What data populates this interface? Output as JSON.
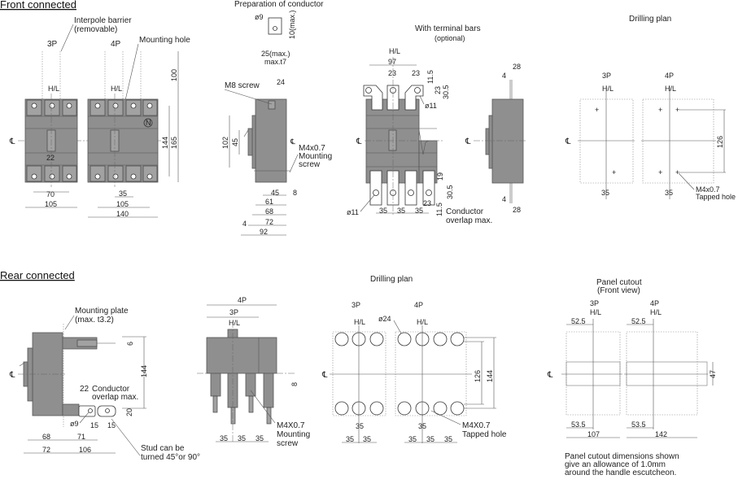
{
  "front": {
    "title": "Front connected",
    "interpole_1": "Interpole barrier",
    "interpole_2": "(removable)",
    "label_3p": "3P",
    "label_4p": "4P",
    "mounting_hole": "Mounting hole",
    "n_mark": "N",
    "dims": {
      "d22": "22",
      "d70": "70",
      "d105a": "105",
      "d35": "35",
      "d105b": "105",
      "d140": "140",
      "d144": "144",
      "d165": "165",
      "d100": "100"
    }
  },
  "conductor_prep": {
    "title": "Preparation of conductor",
    "dia": "ø9",
    "max10": "10(max.)",
    "max25": "25(max.)",
    "thick": "max.t7"
  },
  "side": {
    "m8": "M8 screw",
    "d24": "24",
    "d102": "102",
    "d45v": "45",
    "m4_1": "M4x0.7",
    "m4_2": "Mounting",
    "m4_3": "screw",
    "d45": "45",
    "d8": "8",
    "d61": "61",
    "d68": "68",
    "d72": "72",
    "d4": "4",
    "d92": "92"
  },
  "terminal_bars": {
    "title": "With terminal bars",
    "subtitle": "(optional)",
    "d97": "97",
    "d23a": "23",
    "d23b": "23",
    "d11_5a": "11.5",
    "d23c": "23",
    "d30_5a": "30.5",
    "dia_top": "ø11",
    "d19": "19",
    "d30_5b": "30.5",
    "d23d": "23",
    "d11_5b": "11.5",
    "d35a": "35",
    "d35b": "35",
    "d35c": "35",
    "dia_bot": "ø11",
    "overlap_1": "Conductor",
    "overlap_2": "overlap max.",
    "side_d28a": "28",
    "side_d4a": "4",
    "side_d4b": "4",
    "side_d28b": "28"
  },
  "drill_front": {
    "title": "Drilling plan",
    "label_3p": "3P",
    "label_4p": "4P",
    "d126": "126",
    "d35a": "35",
    "d35b": "35",
    "tap_1": "M4x0.7",
    "tap_2": "Tapped hole"
  },
  "rear": {
    "title": "Rear connected",
    "plate_1": "Mounting plate",
    "plate_2": "(max. t3.2)",
    "d6": "6",
    "d144": "144",
    "d22": "22",
    "overlap_1": "Conductor",
    "overlap_2": "overlap max.",
    "d20": "20",
    "dia": "ø9",
    "d15a": "15",
    "d15b": "15",
    "d68": "68",
    "d71": "71",
    "d72": "72",
    "d106": "106",
    "stud_1": "Stud can be",
    "stud_2": "turned 45°or 90°",
    "front_4p": "4P",
    "front_3p": "3P",
    "front_d8": "8",
    "front_d35a": "35",
    "front_d35b": "35",
    "front_d35c": "35",
    "screw_1": "M4X0.7",
    "screw_2": "Mounting",
    "screw_3": "screw"
  },
  "drill_rear": {
    "title": "Drilling plan",
    "label_3p": "3P",
    "label_4p": "4P",
    "dia": "ø24",
    "d126": "126",
    "d144": "144",
    "d35_3p_top": "35",
    "d35_3p_a": "35",
    "d35_3p_b": "35",
    "d35_4p_top": "35",
    "d35_4p_a": "35",
    "d35_4p_b": "35",
    "d35_4p_c": "35",
    "tap_1": "M4X0.7",
    "tap_2": "Tapped hole"
  },
  "panel_cutout": {
    "title": "Panel cutout",
    "subtitle": "(Front view)",
    "label_3p": "3P",
    "label_4p": "4P",
    "d52_5a": "52.5",
    "d52_5b": "52.5",
    "d47": "47",
    "d53_5a": "53.5",
    "d107": "107",
    "d53_5b": "53.5",
    "d142": "142",
    "note_1": "Panel cutout dimensions shown",
    "note_2": "give an allowance of 1.0mm",
    "note_3": "around the handle escutcheon."
  },
  "symbols": {
    "centerline": "℄",
    "handle_center": "H/L"
  }
}
